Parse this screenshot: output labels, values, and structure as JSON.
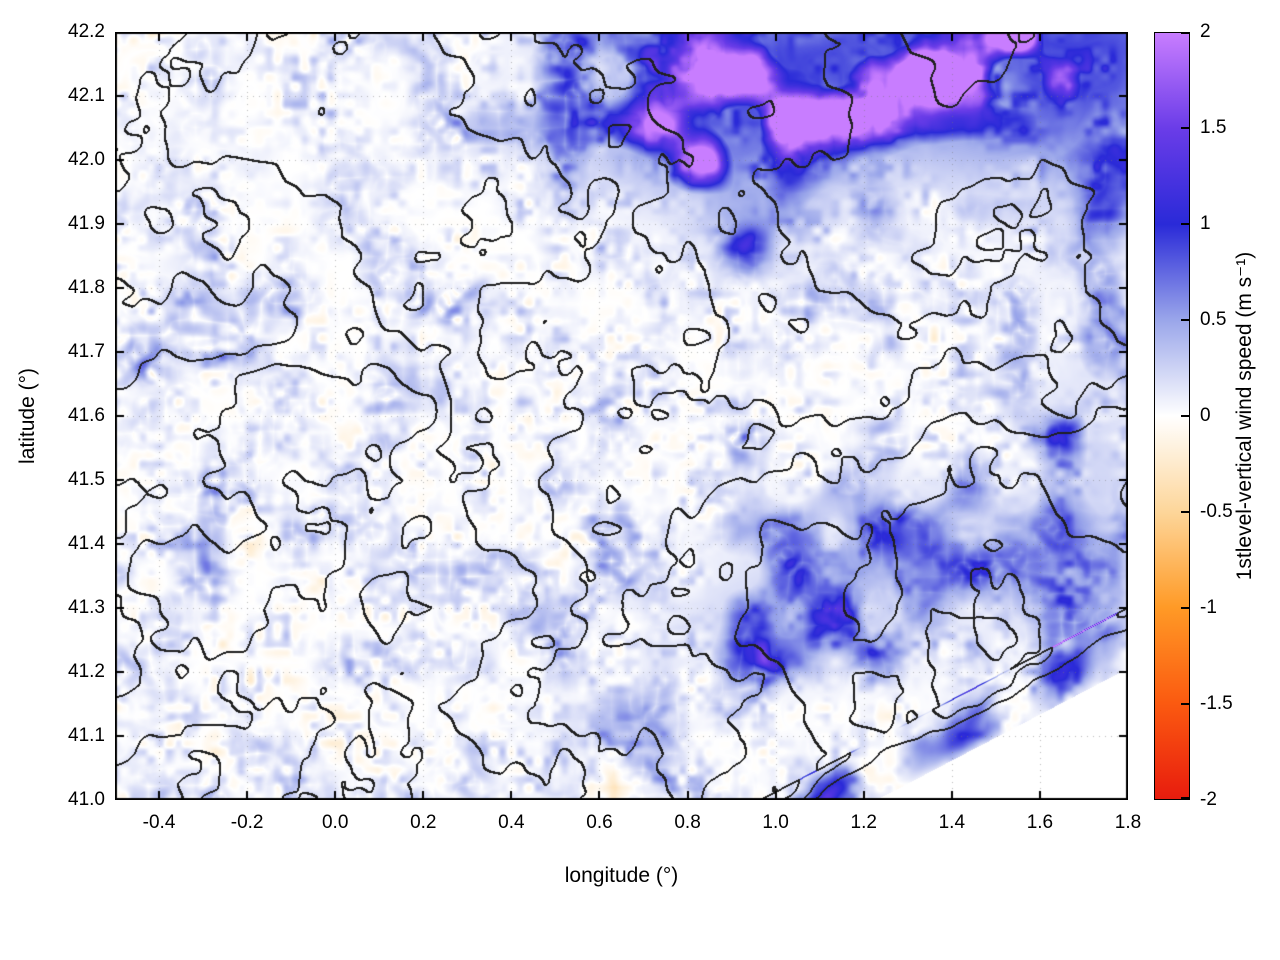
{
  "chart_data": {
    "type": "heatmap",
    "title": "",
    "xlabel": "longitude (°)",
    "ylabel": "latitude (°)",
    "xlim": [
      -0.5,
      1.8
    ],
    "ylim": [
      41.0,
      42.2
    ],
    "xtick_labels": [
      "-0.4",
      "-0.2",
      "0.0",
      "0.2",
      "0.4",
      "0.6",
      "0.8",
      "1.0",
      "1.2",
      "1.4",
      "1.6",
      "1.8"
    ],
    "ytick_labels": [
      "41.0",
      "41.1",
      "41.2",
      "41.3",
      "41.4",
      "41.5",
      "41.6",
      "41.7",
      "41.8",
      "41.9",
      "42.0",
      "42.1",
      "42.2"
    ],
    "grid": "dotted",
    "colorbar": {
      "label": "1stlevel-vertical wind speed (m s⁻¹)",
      "min": -2,
      "max": 2,
      "tick_labels": [
        "2",
        "1.5",
        "1",
        "0.5",
        "0",
        "-0.5",
        "-1",
        "-1.5",
        "-2"
      ],
      "palette_stops": [
        {
          "value": 2,
          "color": "#c87dff"
        },
        {
          "value": 1.5,
          "color": "#6a3ce8"
        },
        {
          "value": 1,
          "color": "#2a2ad8"
        },
        {
          "value": 0.5,
          "color": "#9aa6ea"
        },
        {
          "value": 0,
          "color": "#ffffff"
        },
        {
          "value": -0.5,
          "color": "#fdd69a"
        },
        {
          "value": -1,
          "color": "#ff9a26"
        },
        {
          "value": -1.5,
          "color": "#fb5a10"
        },
        {
          "value": -2,
          "color": "#e81c0e"
        }
      ]
    },
    "overlay": {
      "contours": "black terrain elevation contour lines drawn over the field",
      "coast": "blank white (no data) triangle southeast of a coastline running from about (1.24°, 41.0°) to (1.8°, 41.2°)"
    },
    "field_regions": [
      {
        "area": "most of domain",
        "approx_range_ms": [
          -0.3,
          0.4
        ],
        "note": "near-zero speckled field: faint blue filaments with sparse pale-orange patches"
      },
      {
        "area": "northeast corner (lon > 0.9°, lat > 42.0°)",
        "approx_range_ms": [
          0.5,
          2.0
        ],
        "note": "strongest positive values, intense blue to violet blobs"
      },
      {
        "area": "band near (0.8°–1.0°, 41.9°–42.05°)",
        "approx_range_ms": [
          0.5,
          1.5
        ],
        "note": "strong blue streaks along mountain ridge"
      },
      {
        "area": "coastal range lon 0.9°–1.4°, lat 41.2°–41.45°",
        "approx_range_ms": [
          0.3,
          1.0
        ],
        "note": "blue streaks parallel to coast"
      },
      {
        "area": "right edge lat 41.3°–41.7°",
        "approx_range_ms": [
          0.2,
          0.8
        ],
        "note": "moderate blue patches"
      },
      {
        "area": "southeast of coastline diagonal",
        "approx_range_ms": [
          0,
          0
        ],
        "note": "blank / zero (white), no speckle, no contours"
      }
    ]
  }
}
